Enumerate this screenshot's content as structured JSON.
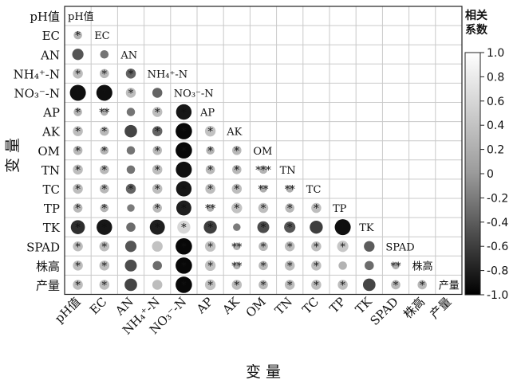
{
  "chart_data": {
    "type": "heatmap",
    "subtype": "correlation-matrix-lower-triangle",
    "variables": [
      "pH值",
      "EC",
      "AN",
      "NH₄⁺-N",
      "NO₃⁻-N",
      "AP",
      "AK",
      "OM",
      "TN",
      "TC",
      "TP",
      "TK",
      "SPAD",
      "株高",
      "产量"
    ],
    "x_axis_title": "变 量",
    "y_axis_title": "变 量",
    "colorbar_title": [
      "相关",
      "系数"
    ],
    "colorbar_ticks": [
      "1.0",
      "0.8",
      "0.6",
      "0.4",
      "0.2",
      "0",
      "-0.2",
      "-0.4",
      "-0.6",
      "-0.8",
      "-1.0"
    ],
    "color_scale": {
      "-1.0": "#000000",
      "0": "#9a9a9a",
      "1.0": "#ffffff"
    },
    "grid": true,
    "cells": [
      {
        "r": "EC",
        "c": "pH值",
        "v": 0.25,
        "sig": "*"
      },
      {
        "r": "AN",
        "c": "pH值",
        "v": -0.45,
        "sig": ""
      },
      {
        "r": "AN",
        "c": "EC",
        "v": -0.25,
        "sig": ""
      },
      {
        "r": "NH₄⁺-N",
        "c": "pH值",
        "v": 0.35,
        "sig": "*"
      },
      {
        "r": "NH₄⁺-N",
        "c": "EC",
        "v": 0.3,
        "sig": "*"
      },
      {
        "r": "NH₄⁺-N",
        "c": "AN",
        "v": -0.35,
        "sig": "*"
      },
      {
        "r": "NO₃⁻-N",
        "c": "pH值",
        "v": -0.9,
        "sig": "*"
      },
      {
        "r": "NO₃⁻-N",
        "c": "EC",
        "v": -0.9,
        "sig": "*"
      },
      {
        "r": "NO₃⁻-N",
        "c": "AN",
        "v": 0.35,
        "sig": "*"
      },
      {
        "r": "NO₃⁻-N",
        "c": "NH₄⁺-N",
        "v": -0.35,
        "sig": ""
      },
      {
        "r": "AP",
        "c": "pH值",
        "v": 0.25,
        "sig": "*"
      },
      {
        "r": "AP",
        "c": "EC",
        "v": 0.2,
        "sig": "**"
      },
      {
        "r": "AP",
        "c": "AN",
        "v": -0.25,
        "sig": ""
      },
      {
        "r": "AP",
        "c": "NH₄⁺-N",
        "v": 0.35,
        "sig": "*"
      },
      {
        "r": "AP",
        "c": "NO₃⁻-N",
        "v": -0.85,
        "sig": "*"
      },
      {
        "r": "AK",
        "c": "pH值",
        "v": 0.35,
        "sig": "*"
      },
      {
        "r": "AK",
        "c": "EC",
        "v": 0.3,
        "sig": "*"
      },
      {
        "r": "AK",
        "c": "AN",
        "v": -0.55,
        "sig": ""
      },
      {
        "r": "AK",
        "c": "NH₄⁺-N",
        "v": -0.35,
        "sig": "*"
      },
      {
        "r": "AK",
        "c": "NO₃⁻-N",
        "v": -0.95,
        "sig": "*"
      },
      {
        "r": "AK",
        "c": "AP",
        "v": 0.4,
        "sig": "*"
      },
      {
        "r": "OM",
        "c": "pH值",
        "v": 0.3,
        "sig": "*"
      },
      {
        "r": "OM",
        "c": "EC",
        "v": 0.25,
        "sig": "*"
      },
      {
        "r": "OM",
        "c": "AN",
        "v": -0.25,
        "sig": ""
      },
      {
        "r": "OM",
        "c": "NH₄⁺-N",
        "v": 0.3,
        "sig": "*"
      },
      {
        "r": "OM",
        "c": "NO₃⁻-N",
        "v": -0.95,
        "sig": "*"
      },
      {
        "r": "OM",
        "c": "AP",
        "v": 0.25,
        "sig": "*"
      },
      {
        "r": "OM",
        "c": "AK",
        "v": 0.3,
        "sig": "*"
      },
      {
        "r": "TN",
        "c": "pH值",
        "v": 0.35,
        "sig": "*"
      },
      {
        "r": "TN",
        "c": "EC",
        "v": 0.3,
        "sig": "*"
      },
      {
        "r": "TN",
        "c": "AN",
        "v": -0.25,
        "sig": ""
      },
      {
        "r": "TN",
        "c": "NH₄⁺-N",
        "v": 0.35,
        "sig": "*"
      },
      {
        "r": "TN",
        "c": "NO₃⁻-N",
        "v": -0.9,
        "sig": "*"
      },
      {
        "r": "TN",
        "c": "AP",
        "v": 0.3,
        "sig": "*"
      },
      {
        "r": "TN",
        "c": "AK",
        "v": 0.3,
        "sig": "*"
      },
      {
        "r": "TN",
        "c": "OM",
        "v": 0.25,
        "sig": "***"
      },
      {
        "r": "TC",
        "c": "pH值",
        "v": 0.35,
        "sig": "*"
      },
      {
        "r": "TC",
        "c": "EC",
        "v": 0.3,
        "sig": "*"
      },
      {
        "r": "TC",
        "c": "AN",
        "v": -0.35,
        "sig": "*"
      },
      {
        "r": "TC",
        "c": "NH₄⁺-N",
        "v": 0.35,
        "sig": "*"
      },
      {
        "r": "TC",
        "c": "NO₃⁻-N",
        "v": -0.85,
        "sig": "*"
      },
      {
        "r": "TC",
        "c": "AP",
        "v": 0.35,
        "sig": "*"
      },
      {
        "r": "TC",
        "c": "AK",
        "v": 0.35,
        "sig": "*"
      },
      {
        "r": "TC",
        "c": "OM",
        "v": 0.2,
        "sig": "**"
      },
      {
        "r": "TC",
        "c": "TN",
        "v": 0.2,
        "sig": "**"
      },
      {
        "r": "TP",
        "c": "pH值",
        "v": 0.3,
        "sig": "*"
      },
      {
        "r": "TP",
        "c": "EC",
        "v": 0.25,
        "sig": "*"
      },
      {
        "r": "TP",
        "c": "AN",
        "v": -0.2,
        "sig": ""
      },
      {
        "r": "TP",
        "c": "NH₄⁺-N",
        "v": 0.3,
        "sig": "*"
      },
      {
        "r": "TP",
        "c": "NO₃⁻-N",
        "v": -0.8,
        "sig": "*"
      },
      {
        "r": "TP",
        "c": "AP",
        "v": 0.2,
        "sig": "**"
      },
      {
        "r": "TP",
        "c": "AK",
        "v": 0.4,
        "sig": "*"
      },
      {
        "r": "TP",
        "c": "OM",
        "v": 0.35,
        "sig": "*"
      },
      {
        "r": "TP",
        "c": "TN",
        "v": 0.3,
        "sig": "*"
      },
      {
        "r": "TP",
        "c": "TC",
        "v": 0.35,
        "sig": "*"
      },
      {
        "r": "TK",
        "c": "pH值",
        "v": -0.7,
        "sig": "*"
      },
      {
        "r": "TK",
        "c": "EC",
        "v": -0.85,
        "sig": "*"
      },
      {
        "r": "TK",
        "c": "AN",
        "v": -0.3,
        "sig": ""
      },
      {
        "r": "TK",
        "c": "NH₄⁺-N",
        "v": -0.8,
        "sig": "*"
      },
      {
        "r": "TK",
        "c": "NO₃⁻-N",
        "v": 0.6,
        "sig": "*"
      },
      {
        "r": "TK",
        "c": "AP",
        "v": -0.6,
        "sig": "*"
      },
      {
        "r": "TK",
        "c": "AK",
        "v": -0.2,
        "sig": ""
      },
      {
        "r": "TK",
        "c": "OM",
        "v": -0.5,
        "sig": "*"
      },
      {
        "r": "TK",
        "c": "TN",
        "v": -0.45,
        "sig": "*"
      },
      {
        "r": "TK",
        "c": "TC",
        "v": -0.6,
        "sig": ""
      },
      {
        "r": "TK",
        "c": "TP",
        "v": -0.9,
        "sig": "*"
      },
      {
        "r": "SPAD",
        "c": "pH值",
        "v": 0.35,
        "sig": "*"
      },
      {
        "r": "SPAD",
        "c": "EC",
        "v": 0.35,
        "sig": "*"
      },
      {
        "r": "SPAD",
        "c": "AN",
        "v": -0.45,
        "sig": ""
      },
      {
        "r": "SPAD",
        "c": "NH₄⁺-N",
        "v": 0.4,
        "sig": ""
      },
      {
        "r": "SPAD",
        "c": "NO₃⁻-N",
        "v": -0.95,
        "sig": "*"
      },
      {
        "r": "SPAD",
        "c": "AP",
        "v": 0.4,
        "sig": "*"
      },
      {
        "r": "SPAD",
        "c": "AK",
        "v": 0.2,
        "sig": "**"
      },
      {
        "r": "SPAD",
        "c": "OM",
        "v": 0.3,
        "sig": "*"
      },
      {
        "r": "SPAD",
        "c": "TN",
        "v": 0.35,
        "sig": "*"
      },
      {
        "r": "SPAD",
        "c": "TC",
        "v": 0.35,
        "sig": "*"
      },
      {
        "r": "SPAD",
        "c": "TP",
        "v": 0.45,
        "sig": "*"
      },
      {
        "r": "SPAD",
        "c": "TK",
        "v": -0.4,
        "sig": ""
      },
      {
        "r": "株高",
        "c": "pH值",
        "v": 0.35,
        "sig": "*"
      },
      {
        "r": "株高",
        "c": "EC",
        "v": 0.35,
        "sig": "*"
      },
      {
        "r": "株高",
        "c": "AN",
        "v": -0.5,
        "sig": ""
      },
      {
        "r": "株高",
        "c": "NH₄⁺-N",
        "v": -0.3,
        "sig": ""
      },
      {
        "r": "株高",
        "c": "NO₃⁻-N",
        "v": -0.95,
        "sig": "*"
      },
      {
        "r": "株高",
        "c": "AP",
        "v": 0.4,
        "sig": "*"
      },
      {
        "r": "株高",
        "c": "AK",
        "v": 0.2,
        "sig": "**"
      },
      {
        "r": "株高",
        "c": "OM",
        "v": 0.3,
        "sig": "*"
      },
      {
        "r": "株高",
        "c": "TN",
        "v": 0.35,
        "sig": "*"
      },
      {
        "r": "株高",
        "c": "TC",
        "v": 0.35,
        "sig": "*"
      },
      {
        "r": "株高",
        "c": "TP",
        "v": 0.25,
        "sig": ""
      },
      {
        "r": "株高",
        "c": "TK",
        "v": -0.3,
        "sig": ""
      },
      {
        "r": "株高",
        "c": "SPAD",
        "v": 0.2,
        "sig": "**"
      },
      {
        "r": "产量",
        "c": "pH值",
        "v": 0.35,
        "sig": "*"
      },
      {
        "r": "产量",
        "c": "EC",
        "v": 0.35,
        "sig": "*"
      },
      {
        "r": "产量",
        "c": "AN",
        "v": -0.55,
        "sig": ""
      },
      {
        "r": "产量",
        "c": "NH₄⁺-N",
        "v": 0.35,
        "sig": ""
      },
      {
        "r": "产量",
        "c": "NO₃⁻-N",
        "v": -0.95,
        "sig": "*"
      },
      {
        "r": "产量",
        "c": "AP",
        "v": 0.4,
        "sig": "*"
      },
      {
        "r": "产量",
        "c": "AK",
        "v": 0.35,
        "sig": "*"
      },
      {
        "r": "产量",
        "c": "OM",
        "v": 0.3,
        "sig": "*"
      },
      {
        "r": "产量",
        "c": "TN",
        "v": 0.35,
        "sig": "*"
      },
      {
        "r": "产量",
        "c": "TC",
        "v": 0.35,
        "sig": "*"
      },
      {
        "r": "产量",
        "c": "TP",
        "v": 0.35,
        "sig": "*"
      },
      {
        "r": "产量",
        "c": "TK",
        "v": -0.55,
        "sig": ""
      },
      {
        "r": "产量",
        "c": "SPAD",
        "v": 0.3,
        "sig": "*"
      },
      {
        "r": "产量",
        "c": "株高",
        "v": 0.3,
        "sig": "*"
      }
    ]
  }
}
